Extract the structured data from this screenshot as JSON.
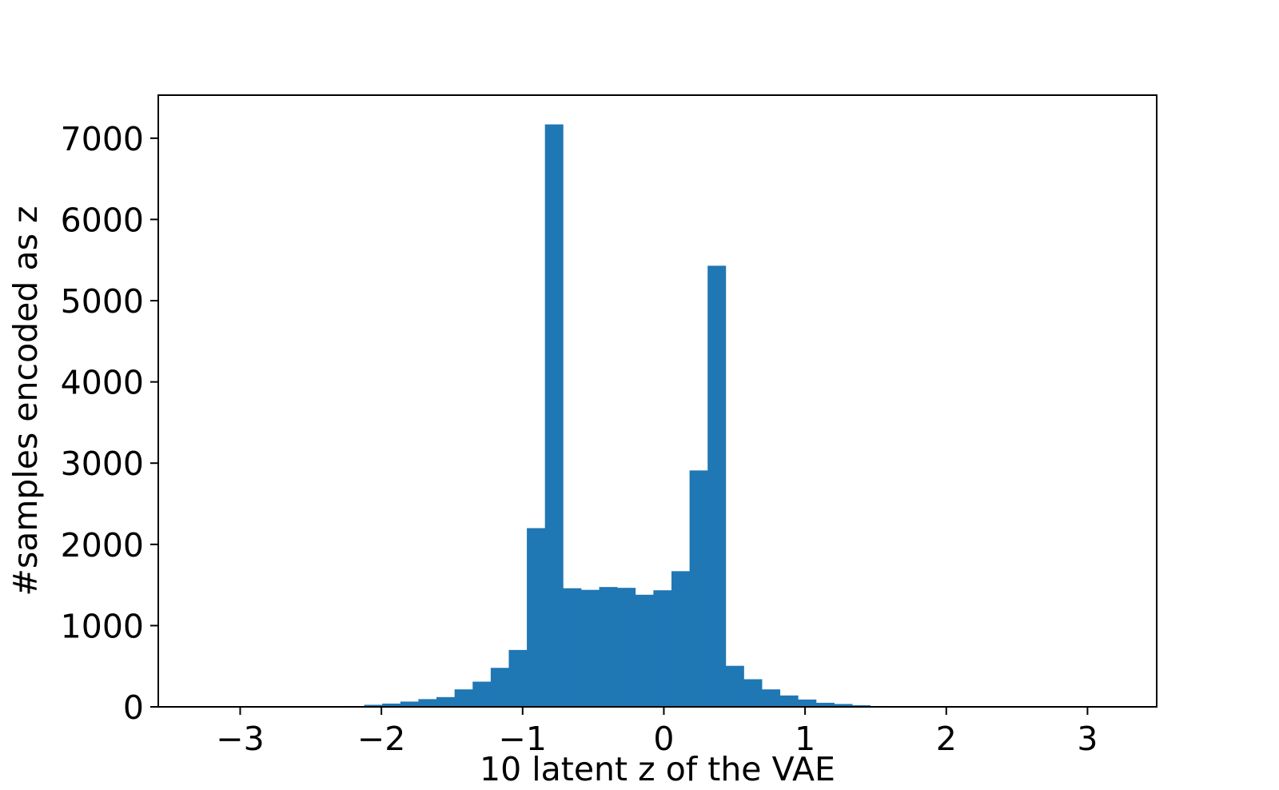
{
  "chart_data": {
    "type": "bar",
    "subtype": "histogram",
    "title": "",
    "xlabel": "10 latent z of the VAE",
    "ylabel": "#samples encoded as z",
    "xlim": [
      -3.58,
      3.49
    ],
    "ylim": [
      0,
      7530
    ],
    "xticks": [
      -3,
      -2,
      -1,
      0,
      1,
      2,
      3
    ],
    "xtick_labels": [
      "−3",
      "−2",
      "−1",
      "0",
      "1",
      "2",
      "3"
    ],
    "yticks": [
      0,
      1000,
      2000,
      3000,
      4000,
      5000,
      6000,
      7000
    ],
    "ytick_labels": [
      "0",
      "1000",
      "2000",
      "3000",
      "4000",
      "5000",
      "6000",
      "7000"
    ],
    "grid": false,
    "legend": "none",
    "color": "#1f77b4",
    "bin_width": 0.128,
    "bin_edges_start": -2.25,
    "values": [
      10,
      25,
      40,
      65,
      95,
      120,
      215,
      310,
      480,
      700,
      2200,
      7170,
      1460,
      1440,
      1475,
      1465,
      1380,
      1435,
      1670,
      2910,
      5430,
      505,
      340,
      215,
      140,
      90,
      50,
      35,
      20,
      10,
      5,
      8,
      5,
      2,
      1
    ]
  }
}
